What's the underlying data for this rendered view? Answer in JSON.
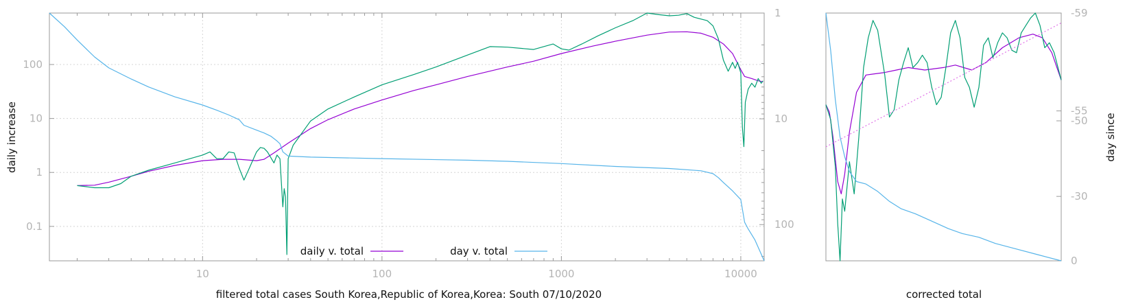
{
  "chart_data": [
    {
      "type": "line",
      "xlabel": "filtered total cases South Korea,Republic of Korea,Korea: South 07/10/2020",
      "ylabel": "daily increase",
      "y2label": "",
      "x_scale": "log",
      "y_scale": "log",
      "y2_scale": "log-reversed",
      "xlim": [
        1.4,
        13500
      ],
      "ylim": [
        0.023,
        900
      ],
      "y2lim": [
        1,
        220
      ],
      "x_ticks": [
        10,
        100,
        1000,
        10000
      ],
      "x_tick_labels": [
        "10",
        "100",
        "1000",
        "10000"
      ],
      "y_ticks": [
        0.1,
        1,
        10,
        100
      ],
      "y_tick_labels": [
        "0.1",
        "1",
        "10",
        "100"
      ],
      "y2_ticks": [
        1,
        10,
        100
      ],
      "y2_tick_labels": [
        "1",
        "10",
        "100"
      ],
      "grid": true,
      "legend_position": "bottom-center",
      "series": [
        {
          "name": "daily v. total",
          "axis": "left",
          "color": "#9400d3",
          "points": [
            [
              2,
              0.57
            ],
            [
              2.5,
              0.58
            ],
            [
              3,
              0.66
            ],
            [
              4,
              0.85
            ],
            [
              5,
              1.05
            ],
            [
              7,
              1.35
            ],
            [
              10,
              1.65
            ],
            [
              13,
              1.75
            ],
            [
              16,
              1.75
            ],
            [
              20,
              1.65
            ],
            [
              22,
              1.75
            ],
            [
              25,
              2.3
            ],
            [
              30,
              3.5
            ],
            [
              40,
              6.5
            ],
            [
              50,
              9.5
            ],
            [
              70,
              15
            ],
            [
              100,
              22
            ],
            [
              150,
              33
            ],
            [
              200,
              42
            ],
            [
              300,
              60
            ],
            [
              500,
              90
            ],
            [
              700,
              115
            ],
            [
              1000,
              160
            ],
            [
              1500,
              220
            ],
            [
              2000,
              270
            ],
            [
              3000,
              350
            ],
            [
              4000,
              400
            ],
            [
              5000,
              405
            ],
            [
              6000,
              380
            ],
            [
              7000,
              320
            ],
            [
              8000,
              240
            ],
            [
              9000,
              160
            ],
            [
              10000,
              80
            ],
            [
              10500,
              60
            ],
            [
              11500,
              55
            ],
            [
              12500,
              50
            ],
            [
              13300,
              48
            ]
          ]
        },
        {
          "name": "",
          "axis": "left",
          "color": "#009e73",
          "points": [
            [
              2,
              0.57
            ],
            [
              2.5,
              0.52
            ],
            [
              3,
              0.52
            ],
            [
              3.5,
              0.62
            ],
            [
              4,
              0.85
            ],
            [
              5,
              1.1
            ],
            [
              7,
              1.5
            ],
            [
              10,
              2.1
            ],
            [
              11,
              2.4
            ],
            [
              12,
              1.8
            ],
            [
              13,
              1.8
            ],
            [
              14,
              2.4
            ],
            [
              15,
              2.3
            ],
            [
              16,
              1.2
            ],
            [
              17,
              0.72
            ],
            [
              18,
              1.1
            ],
            [
              20,
              2.4
            ],
            [
              21,
              2.9
            ],
            [
              22,
              2.8
            ],
            [
              23,
              2.4
            ],
            [
              25,
              1.5
            ],
            [
              26,
              2.1
            ],
            [
              27,
              1.8
            ],
            [
              28,
              0.23
            ],
            [
              28.5,
              0.5
            ],
            [
              29,
              0.35
            ],
            [
              29.5,
              0.03
            ],
            [
              30,
              1.8
            ],
            [
              32,
              3.2
            ],
            [
              40,
              9
            ],
            [
              50,
              15
            ],
            [
              70,
              25
            ],
            [
              100,
              42
            ],
            [
              150,
              65
            ],
            [
              200,
              90
            ],
            [
              300,
              150
            ],
            [
              400,
              215
            ],
            [
              500,
              210
            ],
            [
              700,
              190
            ],
            [
              900,
              240
            ],
            [
              1000,
              195
            ],
            [
              1100,
              185
            ],
            [
              1300,
              240
            ],
            [
              1600,
              340
            ],
            [
              2000,
              480
            ],
            [
              2500,
              650
            ],
            [
              3000,
              900
            ],
            [
              3500,
              840
            ],
            [
              4000,
              800
            ],
            [
              4500,
              820
            ],
            [
              5000,
              880
            ],
            [
              5500,
              750
            ],
            [
              6500,
              650
            ],
            [
              7000,
              520
            ],
            [
              7500,
              300
            ],
            [
              8000,
              120
            ],
            [
              8500,
              75
            ],
            [
              9000,
              110
            ],
            [
              9300,
              85
            ],
            [
              9600,
              110
            ],
            [
              10000,
              70
            ],
            [
              10200,
              7
            ],
            [
              10400,
              3
            ],
            [
              10600,
              20
            ],
            [
              11000,
              35
            ],
            [
              11500,
              45
            ],
            [
              12000,
              38
            ],
            [
              12500,
              55
            ],
            [
              13000,
              45
            ],
            [
              13300,
              50
            ]
          ]
        },
        {
          "name": "day v. total",
          "axis": "right",
          "color": "#56b4e9",
          "points": [
            [
              1.4,
              1
            ],
            [
              1.7,
              1.35
            ],
            [
              2,
              1.8
            ],
            [
              2.5,
              2.6
            ],
            [
              3,
              3.3
            ],
            [
              4,
              4.2
            ],
            [
              5,
              5.0
            ],
            [
              7,
              6.2
            ],
            [
              10,
              7.4
            ],
            [
              12,
              8.3
            ],
            [
              14,
              9.2
            ],
            [
              16,
              10.2
            ],
            [
              17,
              11.5
            ],
            [
              20,
              12.8
            ],
            [
              22,
              13.6
            ],
            [
              24,
              14.6
            ],
            [
              26,
              16.2
            ],
            [
              27,
              17.2
            ],
            [
              28,
              20.5
            ],
            [
              30,
              22.5
            ],
            [
              40,
              23.0
            ],
            [
              100,
              23.8
            ],
            [
              300,
              24.6
            ],
            [
              500,
              25.2
            ],
            [
              1000,
              26.5
            ],
            [
              2000,
              28.2
            ],
            [
              4000,
              29.5
            ],
            [
              6000,
              31
            ],
            [
              7000,
              33
            ],
            [
              7500,
              36
            ],
            [
              8000,
              40
            ],
            [
              9000,
              48
            ],
            [
              10000,
              58
            ],
            [
              10500,
              95
            ],
            [
              11000,
              110
            ],
            [
              12000,
              140
            ],
            [
              13000,
              190
            ],
            [
              13500,
              220
            ]
          ]
        }
      ]
    },
    {
      "type": "line",
      "xlabel": "corrected total",
      "ylabel": "",
      "y2label": "day since",
      "y2_ticks": [
        -59,
        -55,
        -50,
        -30,
        0
      ],
      "y2_tick_labels": [
        "-59",
        "-55",
        "-50",
        "-30",
        "0"
      ],
      "grid": false,
      "series": [
        {
          "name": "",
          "color": "#9400d3",
          "points": [
            [
              0,
              0.63
            ],
            [
              0.015,
              0.6
            ],
            [
              0.03,
              0.5
            ],
            [
              0.05,
              0.32
            ],
            [
              0.065,
              0.27
            ],
            [
              0.08,
              0.35
            ],
            [
              0.1,
              0.52
            ],
            [
              0.13,
              0.68
            ],
            [
              0.17,
              0.75
            ],
            [
              0.25,
              0.76
            ],
            [
              0.3,
              0.77
            ],
            [
              0.35,
              0.78
            ],
            [
              0.42,
              0.77
            ],
            [
              0.5,
              0.78
            ],
            [
              0.55,
              0.79
            ],
            [
              0.62,
              0.77
            ],
            [
              0.68,
              0.8
            ],
            [
              0.75,
              0.86
            ],
            [
              0.82,
              0.9
            ],
            [
              0.88,
              0.915
            ],
            [
              0.92,
              0.9
            ],
            [
              0.96,
              0.84
            ],
            [
              1,
              0.73
            ]
          ]
        },
        {
          "name": "",
          "color": "#009e73",
          "points": [
            [
              0,
              0.63
            ],
            [
              0.02,
              0.57
            ],
            [
              0.04,
              0.38
            ],
            [
              0.05,
              0.15
            ],
            [
              0.06,
              0.0
            ],
            [
              0.07,
              0.25
            ],
            [
              0.08,
              0.2
            ],
            [
              0.1,
              0.4
            ],
            [
              0.12,
              0.27
            ],
            [
              0.14,
              0.5
            ],
            [
              0.16,
              0.78
            ],
            [
              0.18,
              0.9
            ],
            [
              0.2,
              0.97
            ],
            [
              0.22,
              0.93
            ],
            [
              0.25,
              0.75
            ],
            [
              0.27,
              0.58
            ],
            [
              0.29,
              0.61
            ],
            [
              0.31,
              0.73
            ],
            [
              0.33,
              0.8
            ],
            [
              0.35,
              0.86
            ],
            [
              0.37,
              0.78
            ],
            [
              0.39,
              0.8
            ],
            [
              0.41,
              0.83
            ],
            [
              0.43,
              0.8
            ],
            [
              0.45,
              0.7
            ],
            [
              0.47,
              0.63
            ],
            [
              0.49,
              0.66
            ],
            [
              0.51,
              0.78
            ],
            [
              0.53,
              0.92
            ],
            [
              0.55,
              0.97
            ],
            [
              0.57,
              0.9
            ],
            [
              0.59,
              0.74
            ],
            [
              0.61,
              0.7
            ],
            [
              0.63,
              0.62
            ],
            [
              0.65,
              0.7
            ],
            [
              0.67,
              0.87
            ],
            [
              0.69,
              0.9
            ],
            [
              0.71,
              0.82
            ],
            [
              0.73,
              0.88
            ],
            [
              0.75,
              0.92
            ],
            [
              0.77,
              0.9
            ],
            [
              0.79,
              0.85
            ],
            [
              0.81,
              0.84
            ],
            [
              0.83,
              0.92
            ],
            [
              0.85,
              0.95
            ],
            [
              0.87,
              0.98
            ],
            [
              0.89,
              1.0
            ],
            [
              0.91,
              0.95
            ],
            [
              0.93,
              0.86
            ],
            [
              0.95,
              0.88
            ],
            [
              0.97,
              0.84
            ],
            [
              1,
              0.73
            ]
          ]
        },
        {
          "name": "",
          "color": "#56b4e9",
          "points": [
            [
              0,
              1.0
            ],
            [
              0.02,
              0.85
            ],
            [
              0.04,
              0.65
            ],
            [
              0.06,
              0.5
            ],
            [
              0.08,
              0.42
            ],
            [
              0.1,
              0.36
            ],
            [
              0.13,
              0.32
            ],
            [
              0.17,
              0.31
            ],
            [
              0.22,
              0.28
            ],
            [
              0.27,
              0.24
            ],
            [
              0.32,
              0.21
            ],
            [
              0.38,
              0.19
            ],
            [
              0.45,
              0.16
            ],
            [
              0.52,
              0.13
            ],
            [
              0.58,
              0.11
            ],
            [
              0.65,
              0.095
            ],
            [
              0.72,
              0.07
            ],
            [
              0.8,
              0.05
            ],
            [
              0.9,
              0.025
            ],
            [
              1,
              0.0
            ]
          ]
        },
        {
          "name": "",
          "color": "#e070e8",
          "style": "dotted",
          "points": [
            [
              0,
              0.46
            ],
            [
              1,
              0.96
            ]
          ]
        }
      ]
    }
  ]
}
